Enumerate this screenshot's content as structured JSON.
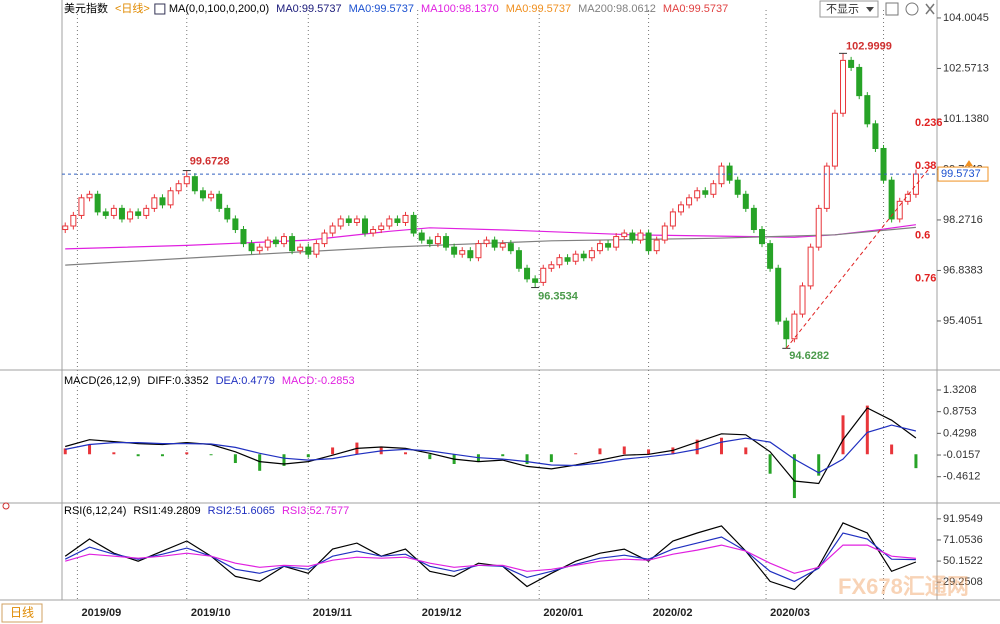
{
  "header": {
    "dropdown": "不显示"
  },
  "footer": {
    "period": "日线",
    "watermark": "FX678汇通网"
  },
  "chart_data": [
    {
      "type": "candlestick",
      "title": "美元指数",
      "period": "<日线>",
      "legend": [
        {
          "text": "MA(0,0,100,0,200,0)",
          "color": "#000000"
        },
        {
          "text": "MA0:99.5737",
          "color": "#1a1a7a"
        },
        {
          "text": "MA0:99.5737",
          "color": "#1a50d0"
        },
        {
          "text": "MA100:98.1370",
          "color": "#e020e0"
        },
        {
          "text": "MA0:99.5737",
          "color": "#f09020"
        },
        {
          "text": "MA200:98.0612",
          "color": "#808080"
        },
        {
          "text": "MA0:99.5737",
          "color": "#e04040"
        }
      ],
      "open": [
        98.0,
        98.1,
        98.4,
        98.9,
        99.0,
        98.5,
        98.4,
        98.6,
        98.3,
        98.5,
        98.4,
        98.6,
        98.9,
        98.7,
        99.1,
        99.3,
        99.5,
        99.1,
        98.9,
        99.0,
        98.6,
        98.3,
        98.0,
        97.6,
        97.4,
        97.5,
        97.7,
        97.6,
        97.8,
        97.4,
        97.5,
        97.3,
        97.6,
        97.9,
        98.1,
        98.3,
        98.2,
        98.3,
        97.9,
        98.0,
        98.1,
        98.3,
        98.2,
        98.4,
        97.9,
        97.7,
        97.6,
        97.8,
        97.5,
        97.3,
        97.4,
        97.2,
        97.6,
        97.7,
        97.5,
        97.6,
        97.4,
        96.9,
        96.6,
        96.5,
        96.9,
        97.0,
        97.2,
        97.1,
        97.3,
        97.2,
        97.4,
        97.6,
        97.5,
        97.8,
        97.9,
        97.7,
        97.9,
        97.4,
        97.7,
        98.1,
        98.5,
        98.7,
        98.9,
        99.1,
        99.0,
        99.3,
        99.8,
        99.4,
        99.0,
        98.6,
        98.0,
        97.6,
        96.9,
        95.4,
        94.9,
        95.6,
        96.4,
        97.5,
        98.6,
        99.8,
        101.3,
        102.8,
        102.6,
        101.8,
        101.0,
        100.3,
        99.4,
        98.3,
        98.8,
        99.0
      ],
      "high": [
        98.2,
        98.5,
        99.0,
        99.1,
        99.1,
        98.6,
        98.7,
        98.7,
        98.6,
        98.6,
        98.7,
        99.0,
        99.0,
        99.2,
        99.4,
        99.6728,
        99.6,
        99.2,
        99.1,
        99.1,
        98.7,
        98.4,
        98.1,
        97.7,
        97.6,
        97.8,
        97.8,
        97.9,
        97.9,
        97.6,
        97.6,
        97.7,
        98.0,
        98.2,
        98.4,
        98.4,
        98.4,
        98.4,
        98.1,
        98.2,
        98.4,
        98.4,
        98.5,
        98.5,
        98.0,
        97.8,
        97.9,
        97.9,
        97.6,
        97.5,
        97.5,
        97.7,
        97.8,
        97.8,
        97.7,
        97.7,
        97.5,
        97.0,
        96.7,
        97.0,
        97.1,
        97.3,
        97.3,
        97.4,
        97.4,
        97.5,
        97.7,
        97.7,
        97.9,
        98.0,
        98.0,
        98.0,
        98.0,
        97.8,
        98.2,
        98.6,
        98.8,
        99.0,
        99.2,
        99.2,
        99.4,
        99.9,
        99.9,
        99.5,
        99.1,
        98.7,
        98.1,
        97.7,
        97.0,
        95.5,
        95.7,
        96.5,
        97.6,
        98.7,
        99.9,
        101.4,
        102.9999,
        102.9,
        102.7,
        101.9,
        101.1,
        100.4,
        99.5,
        98.9,
        99.1,
        99.7
      ],
      "low": [
        97.9,
        98.0,
        98.3,
        98.8,
        98.4,
        98.3,
        98.3,
        98.2,
        98.2,
        98.3,
        98.3,
        98.5,
        98.6,
        98.6,
        99.0,
        99.2,
        99.0,
        98.8,
        98.8,
        98.5,
        98.2,
        97.9,
        97.5,
        97.3,
        97.3,
        97.4,
        97.5,
        97.5,
        97.3,
        97.3,
        97.2,
        97.2,
        97.5,
        97.8,
        98.0,
        98.1,
        98.1,
        97.8,
        97.8,
        97.9,
        98.0,
        98.1,
        98.1,
        97.8,
        97.6,
        97.5,
        97.5,
        97.4,
        97.2,
        97.2,
        97.1,
        97.1,
        97.5,
        97.4,
        97.4,
        97.3,
        96.8,
        96.5,
        96.3534,
        96.4,
        96.8,
        96.9,
        97.0,
        97.0,
        97.1,
        97.1,
        97.3,
        97.4,
        97.4,
        97.7,
        97.6,
        97.6,
        97.3,
        97.3,
        97.6,
        98.0,
        98.4,
        98.6,
        98.8,
        98.9,
        98.9,
        99.2,
        99.3,
        98.9,
        98.5,
        97.9,
        97.5,
        96.8,
        95.3,
        94.6282,
        94.8,
        95.5,
        96.3,
        97.4,
        98.5,
        99.7,
        101.2,
        102.5,
        101.7,
        100.9,
        100.2,
        99.3,
        98.2,
        98.2,
        98.7,
        98.9
      ],
      "close": [
        98.1,
        98.4,
        98.9,
        99.0,
        98.5,
        98.4,
        98.6,
        98.3,
        98.5,
        98.4,
        98.6,
        98.9,
        98.7,
        99.1,
        99.3,
        99.5,
        99.1,
        98.9,
        99.0,
        98.6,
        98.3,
        98.0,
        97.6,
        97.4,
        97.5,
        97.7,
        97.6,
        97.8,
        97.4,
        97.5,
        97.3,
        97.6,
        97.9,
        98.1,
        98.3,
        98.2,
        98.3,
        97.9,
        98.0,
        98.1,
        98.3,
        98.2,
        98.4,
        97.9,
        97.7,
        97.6,
        97.8,
        97.5,
        97.3,
        97.4,
        97.2,
        97.6,
        97.7,
        97.5,
        97.6,
        97.4,
        96.9,
        96.6,
        96.5,
        96.9,
        97.0,
        97.2,
        97.1,
        97.3,
        97.2,
        97.4,
        97.6,
        97.5,
        97.8,
        97.9,
        97.7,
        97.9,
        97.4,
        97.7,
        98.1,
        98.5,
        98.7,
        98.9,
        99.1,
        99.0,
        99.3,
        99.8,
        99.4,
        99.0,
        98.6,
        98.0,
        97.6,
        96.9,
        95.4,
        94.9,
        95.6,
        96.4,
        97.5,
        98.6,
        99.8,
        101.3,
        102.8,
        102.6,
        101.8,
        101.0,
        100.3,
        99.4,
        98.3,
        98.8,
        99.0,
        99.5737
      ],
      "up_color": "#e8353a",
      "down_color": "#27a327",
      "last_color": "#f09020",
      "last_text_color": "#1a50d0",
      "xlim": [
        -0.4,
        107.6
      ],
      "ylim": [
        94.07,
        104.23
      ],
      "yticks": [
        104.0045,
        102.5713,
        {
          "value": 101.138,
          "label": "101.1380"
        },
        99.7048,
        98.2716,
        96.8383,
        95.4051
      ],
      "xticks": [
        {
          "value": 1.5,
          "label": "2019/09"
        },
        {
          "value": 15,
          "label": "2019/10"
        },
        {
          "value": 30,
          "label": "2019/11"
        },
        {
          "value": 43.5,
          "label": "2019/12"
        },
        {
          "value": 58.5,
          "label": "2020/01"
        },
        {
          "value": 72,
          "label": "2020/02"
        },
        {
          "value": 86.5,
          "label": "2020/03"
        },
        {
          "value": 101,
          "label": null
        }
      ],
      "series": [
        {
          "color": "#e020e0",
          "x": [
            0,
            15,
            30,
            40,
            45,
            55,
            70,
            85,
            90,
            95,
            100,
            105
          ],
          "values": [
            97.45,
            97.55,
            97.7,
            97.95,
            98.05,
            97.98,
            97.85,
            97.8,
            97.78,
            97.85,
            97.98,
            98.137
          ]
        },
        {
          "color": "#808080",
          "x": [
            0,
            20,
            40,
            60,
            80,
            95,
            105
          ],
          "values": [
            96.99,
            97.25,
            97.5,
            97.68,
            97.75,
            97.85,
            98.0612
          ]
        }
      ],
      "fib": {
        "levels": [
          0.236,
          0.382,
          0.618,
          0.764
        ],
        "value_labels": [
          "0.236",
          "0.38",
          "0.6",
          "0.76"
        ],
        "color": "#e02020"
      }
    },
    {
      "type": "macd",
      "legend": [
        {
          "text": "MACD(26,12,9)",
          "color": "#000000"
        },
        {
          "text": "DIFF:0.3352",
          "color": "#000000"
        },
        {
          "text": "DEA:0.4779",
          "color": "#2030c0"
        },
        {
          "text": "MACD:-0.2853",
          "color": "#e020e0"
        }
      ],
      "xlim": [
        -0.4,
        107.6
      ],
      "ylim": [
        -0.94,
        1.67
      ],
      "yticks": [
        1.3208,
        0.8753,
        0.4298,
        -0.0157,
        -0.4612
      ],
      "x": [
        0,
        3,
        6,
        9,
        12,
        15,
        18,
        21,
        24,
        27,
        30,
        33,
        36,
        39,
        42,
        45,
        48,
        51,
        54,
        57,
        60,
        63,
        66,
        69,
        72,
        75,
        78,
        81,
        84,
        87,
        90,
        93,
        96,
        99,
        102,
        105
      ],
      "lines": [
        {
          "color": "#000000",
          "values": [
            0.16,
            0.3,
            0.26,
            0.22,
            0.2,
            0.24,
            0.2,
            0.05,
            -0.15,
            -0.2,
            -0.15,
            -0.02,
            0.12,
            0.15,
            0.12,
            0.02,
            -0.1,
            -0.15,
            -0.12,
            -0.25,
            -0.3,
            -0.22,
            -0.12,
            -0.02,
            0.0,
            0.08,
            0.25,
            0.42,
            0.4,
            0.05,
            -0.55,
            -0.6,
            0.3,
            0.95,
            0.7,
            0.3352
          ]
        },
        {
          "color": "#2030c0",
          "values": [
            0.1,
            0.2,
            0.24,
            0.24,
            0.22,
            0.22,
            0.21,
            0.14,
            0.02,
            -0.08,
            -0.12,
            -0.09,
            0.0,
            0.07,
            0.1,
            0.07,
            0.0,
            -0.07,
            -0.1,
            -0.15,
            -0.22,
            -0.23,
            -0.18,
            -0.1,
            -0.05,
            0.01,
            0.1,
            0.25,
            0.33,
            0.25,
            -0.1,
            -0.38,
            -0.1,
            0.45,
            0.6,
            0.4779
          ]
        }
      ],
      "histogram": {
        "up_color": "#e8353a",
        "down_color": "#27a327",
        "values": [
          0.12,
          0.2,
          0.04,
          -0.04,
          -0.04,
          0.04,
          -0.02,
          -0.18,
          -0.34,
          -0.24,
          -0.06,
          0.14,
          0.24,
          0.16,
          0.04,
          -0.1,
          -0.2,
          -0.16,
          -0.04,
          -0.2,
          -0.16,
          0.02,
          0.12,
          0.16,
          0.1,
          0.14,
          0.3,
          0.34,
          0.14,
          -0.4,
          -0.9,
          -0.44,
          0.8,
          1.0,
          0.2,
          -0.2853
        ]
      }
    },
    {
      "type": "line",
      "legend": [
        {
          "text": "RSI(6,12,24)",
          "color": "#000000"
        },
        {
          "text": "RSI1:49.2809",
          "color": "#000000"
        },
        {
          "text": "RSI2:51.6065",
          "color": "#2030c0"
        },
        {
          "text": "RSI3:52.7577",
          "color": "#e020e0"
        }
      ],
      "xlim": [
        -0.4,
        107.6
      ],
      "ylim": [
        11.6,
        104.7
      ],
      "yticks": [
        91.9549,
        71.0536,
        50.1522,
        29.2508
      ],
      "x": [
        0,
        3,
        6,
        9,
        12,
        15,
        18,
        21,
        24,
        27,
        30,
        33,
        36,
        39,
        42,
        45,
        48,
        51,
        54,
        57,
        60,
        63,
        66,
        69,
        72,
        75,
        78,
        81,
        84,
        87,
        90,
        93,
        96,
        99,
        102,
        105
      ],
      "series": [
        {
          "color": "#000000",
          "values": [
            55,
            72,
            58,
            50,
            60,
            70,
            55,
            35,
            30,
            45,
            38,
            62,
            68,
            55,
            62,
            40,
            35,
            48,
            45,
            25,
            38,
            50,
            58,
            62,
            50,
            70,
            78,
            85,
            60,
            30,
            22,
            45,
            88,
            78,
            40,
            49.2809
          ]
        },
        {
          "color": "#2030c0",
          "values": [
            52,
            64,
            57,
            52,
            57,
            63,
            55,
            42,
            38,
            45,
            42,
            55,
            60,
            55,
            57,
            45,
            40,
            46,
            45,
            34,
            40,
            47,
            53,
            56,
            52,
            62,
            68,
            74,
            60,
            40,
            30,
            43,
            78,
            72,
            52,
            51.6065
          ]
        },
        {
          "color": "#e020e0",
          "values": [
            50,
            57,
            55,
            53,
            55,
            58,
            55,
            48,
            44,
            46,
            45,
            51,
            54,
            53,
            54,
            48,
            44,
            46,
            46,
            40,
            42,
            46,
            50,
            52,
            51,
            57,
            61,
            66,
            60,
            48,
            38,
            44,
            66,
            66,
            55,
            52.7577
          ]
        }
      ]
    }
  ]
}
